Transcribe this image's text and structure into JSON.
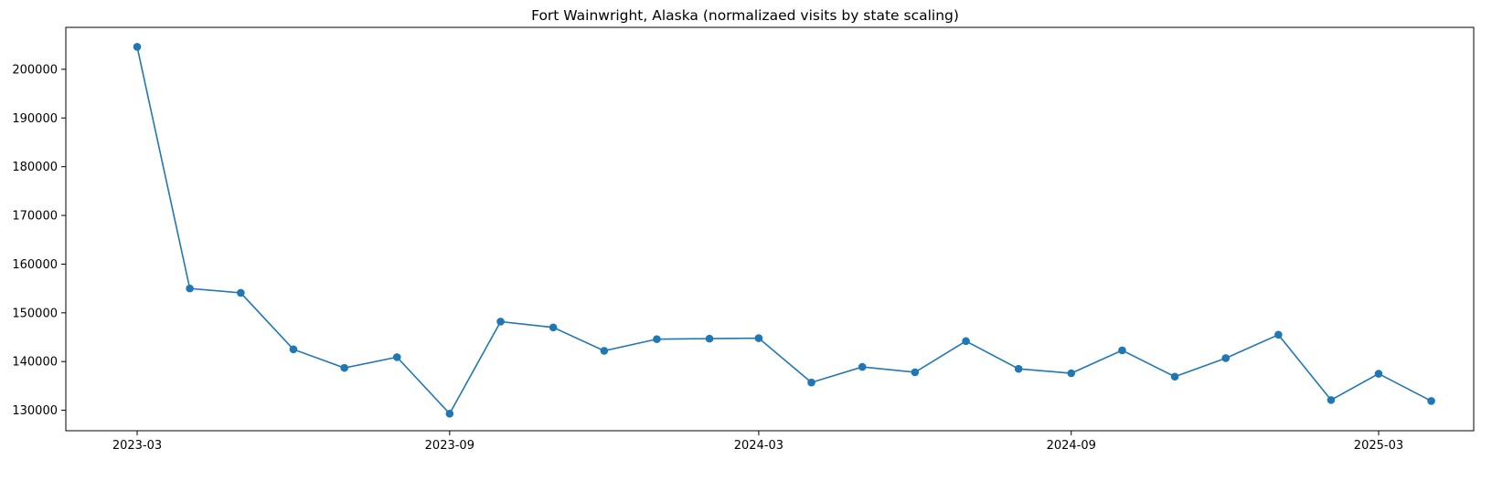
{
  "chart_data": {
    "type": "line",
    "title": "Fort Wainwright, Alaska (normalizaed visits by state scaling)",
    "xlabel": "",
    "ylabel": "",
    "x_ticks": [
      "2023-03",
      "2023-09",
      "2024-03",
      "2024-09",
      "2025-03"
    ],
    "y_ticks": [
      130000,
      140000,
      150000,
      160000,
      170000,
      180000,
      190000,
      200000
    ],
    "ylim": [
      125800,
      208600
    ],
    "xlim": [
      "2023-01-18",
      "2025-04-26"
    ],
    "grid": false,
    "legend": "none",
    "series": [
      {
        "color": "#1f77b4",
        "marker": "circle",
        "points": [
          {
            "x": "2023-03-01",
            "y": 204600
          },
          {
            "x": "2023-04-01",
            "y": 155000
          },
          {
            "x": "2023-05-01",
            "y": 154100
          },
          {
            "x": "2023-06-01",
            "y": 142500
          },
          {
            "x": "2023-07-01",
            "y": 138700
          },
          {
            "x": "2023-08-01",
            "y": 140900
          },
          {
            "x": "2023-09-01",
            "y": 129300
          },
          {
            "x": "2023-10-01",
            "y": 148200
          },
          {
            "x": "2023-11-01",
            "y": 147000
          },
          {
            "x": "2023-12-01",
            "y": 142200
          },
          {
            "x": "2024-01-01",
            "y": 144600
          },
          {
            "x": "2024-02-01",
            "y": 144700
          },
          {
            "x": "2024-03-01",
            "y": 144800
          },
          {
            "x": "2024-04-01",
            "y": 135700
          },
          {
            "x": "2024-05-01",
            "y": 138900
          },
          {
            "x": "2024-06-01",
            "y": 137800
          },
          {
            "x": "2024-07-01",
            "y": 144200
          },
          {
            "x": "2024-08-01",
            "y": 138500
          },
          {
            "x": "2024-09-01",
            "y": 137600
          },
          {
            "x": "2024-10-01",
            "y": 142300
          },
          {
            "x": "2024-11-01",
            "y": 136900
          },
          {
            "x": "2024-12-01",
            "y": 140700
          },
          {
            "x": "2025-01-01",
            "y": 145500
          },
          {
            "x": "2025-02-01",
            "y": 132100
          },
          {
            "x": "2025-03-01",
            "y": 137500
          },
          {
            "x": "2025-04-01",
            "y": 131900
          }
        ]
      }
    ]
  }
}
